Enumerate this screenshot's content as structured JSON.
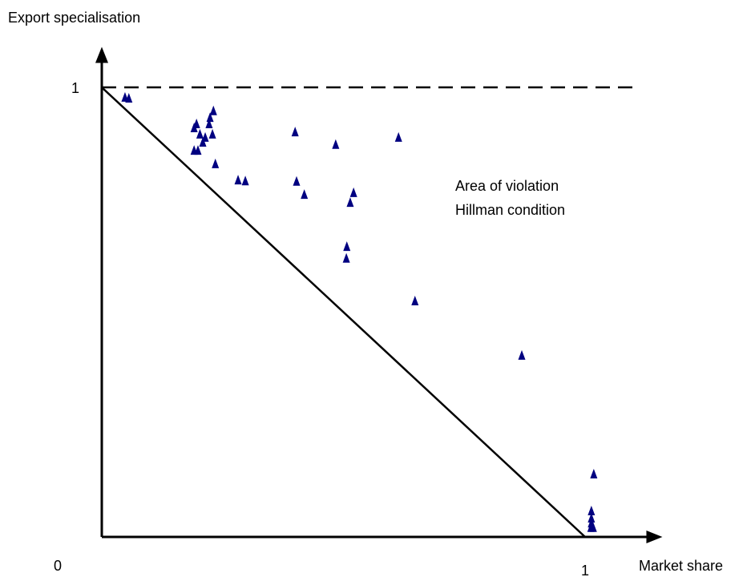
{
  "chart_data": {
    "type": "scatter",
    "y_label": "Export specialisation",
    "x_label": "Market share",
    "annotation": [
      "Area of violation",
      "Hillman condition"
    ],
    "xlim": [
      0,
      1.16
    ],
    "ylim": [
      0,
      1.09
    ],
    "xticks": [
      0,
      1
    ],
    "yticks": [
      1
    ],
    "color": "#000080",
    "lines": [
      {
        "style": "dashed",
        "x": [
          0,
          1.1
        ],
        "y": [
          1,
          1
        ]
      },
      {
        "style": "solid",
        "x": [
          0,
          1
        ],
        "y": [
          1,
          0
        ]
      }
    ],
    "x": [
      0.048,
      0.056,
      0.191,
      0.199,
      0.191,
      0.196,
      0.203,
      0.209,
      0.214,
      0.222,
      0.224,
      0.229,
      0.231,
      0.235,
      0.282,
      0.297,
      0.4,
      0.403,
      0.419,
      0.484,
      0.514,
      0.521,
      0.507,
      0.506,
      0.614,
      0.648,
      0.869,
      1.018,
      1.013,
      1.013,
      1.012,
      1.017,
      1.013
    ],
    "y": [
      0.977,
      0.975,
      0.859,
      0.859,
      0.909,
      0.918,
      0.895,
      0.877,
      0.888,
      0.918,
      0.932,
      0.895,
      0.947,
      0.829,
      0.793,
      0.791,
      0.9,
      0.79,
      0.761,
      0.872,
      0.743,
      0.765,
      0.645,
      0.619,
      0.888,
      0.524,
      0.403,
      0.139,
      0.057,
      0.041,
      0.02,
      0.02,
      0.03
    ]
  }
}
